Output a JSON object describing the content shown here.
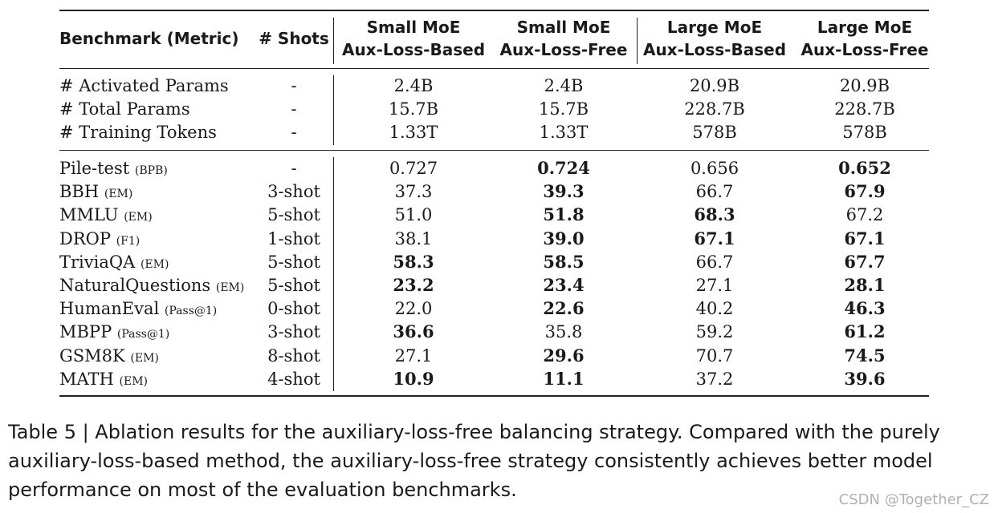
{
  "header": {
    "benchmark": "Benchmark (Metric)",
    "shots": "# Shots",
    "columns": [
      {
        "line1": "Small MoE",
        "line2": "Aux-Loss-Based"
      },
      {
        "line1": "Small MoE",
        "line2": "Aux-Loss-Free"
      },
      {
        "line1": "Large MoE",
        "line2": "Aux-Loss-Based"
      },
      {
        "line1": "Large MoE",
        "line2": "Aux-Loss-Free"
      }
    ]
  },
  "params": [
    {
      "name": "# Activated Params",
      "shots": "-",
      "values": [
        "2.4B",
        "2.4B",
        "20.9B",
        "20.9B"
      ]
    },
    {
      "name": "# Total Params",
      "shots": "-",
      "values": [
        "15.7B",
        "15.7B",
        "228.7B",
        "228.7B"
      ]
    },
    {
      "name": "# Training Tokens",
      "shots": "-",
      "values": [
        "1.33T",
        "1.33T",
        "578B",
        "578B"
      ]
    }
  ],
  "results": [
    {
      "name": "Pile-test",
      "metric": "(BPB)",
      "shots": "-",
      "values": [
        "0.727",
        "0.724",
        "0.656",
        "0.652"
      ],
      "bold": [
        false,
        true,
        false,
        true
      ]
    },
    {
      "name": "BBH",
      "metric": "(EM)",
      "shots": "3-shot",
      "values": [
        "37.3",
        "39.3",
        "66.7",
        "67.9"
      ],
      "bold": [
        false,
        true,
        false,
        true
      ]
    },
    {
      "name": "MMLU",
      "metric": "(EM)",
      "shots": "5-shot",
      "values": [
        "51.0",
        "51.8",
        "68.3",
        "67.2"
      ],
      "bold": [
        false,
        true,
        true,
        false
      ]
    },
    {
      "name": "DROP",
      "metric": "(F1)",
      "shots": "1-shot",
      "values": [
        "38.1",
        "39.0",
        "67.1",
        "67.1"
      ],
      "bold": [
        false,
        true,
        true,
        true
      ]
    },
    {
      "name": "TriviaQA",
      "metric": "(EM)",
      "shots": "5-shot",
      "values": [
        "58.3",
        "58.5",
        "66.7",
        "67.7"
      ],
      "bold": [
        true,
        true,
        false,
        true
      ]
    },
    {
      "name": "NaturalQuestions",
      "metric": "(EM)",
      "shots": "5-shot",
      "values": [
        "23.2",
        "23.4",
        "27.1",
        "28.1"
      ],
      "bold": [
        true,
        true,
        false,
        true
      ]
    },
    {
      "name": "HumanEval",
      "metric": "(Pass@1)",
      "shots": "0-shot",
      "values": [
        "22.0",
        "22.6",
        "40.2",
        "46.3"
      ],
      "bold": [
        false,
        true,
        false,
        true
      ]
    },
    {
      "name": "MBPP",
      "metric": "(Pass@1)",
      "shots": "3-shot",
      "values": [
        "36.6",
        "35.8",
        "59.2",
        "61.2"
      ],
      "bold": [
        true,
        false,
        false,
        true
      ]
    },
    {
      "name": "GSM8K",
      "metric": "(EM)",
      "shots": "8-shot",
      "values": [
        "27.1",
        "29.6",
        "70.7",
        "74.5"
      ],
      "bold": [
        false,
        true,
        false,
        true
      ]
    },
    {
      "name": "MATH",
      "metric": "(EM)",
      "shots": "4-shot",
      "values": [
        "10.9",
        "11.1",
        "37.2",
        "39.6"
      ],
      "bold": [
        true,
        true,
        false,
        true
      ]
    }
  ],
  "caption": "Table 5 | Ablation results for the auxiliary-loss-free balancing strategy.  Compared with the purely auxiliary-loss-based method, the auxiliary-loss-free strategy consistently achieves better model performance on most of the evaluation benchmarks.",
  "watermark": "CSDN @Together_CZ"
}
